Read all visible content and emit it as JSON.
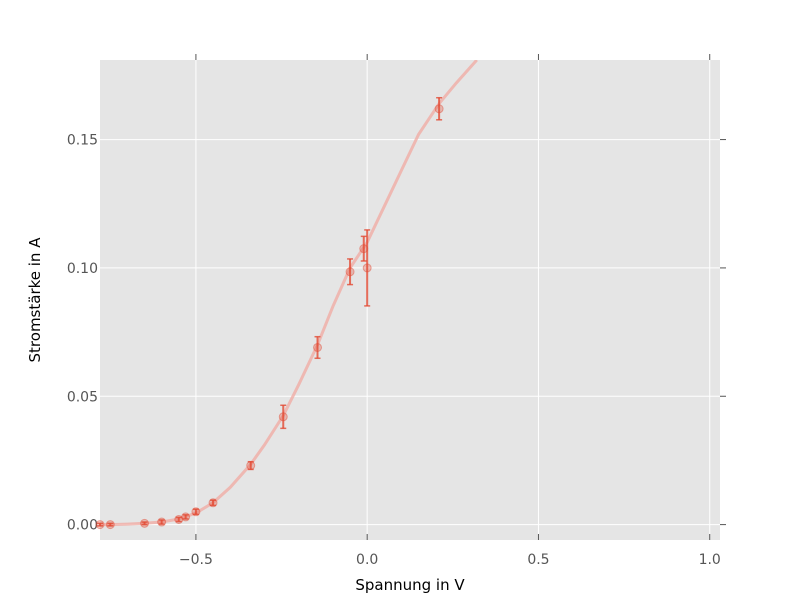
{
  "chart_data": {
    "type": "line",
    "title": "",
    "xlabel": "Spannung in V",
    "ylabel": "Stromstärke in A",
    "xlim": [
      -0.78,
      1.03
    ],
    "ylim": [
      -0.006,
      0.181
    ],
    "grid": true,
    "legend": "none",
    "x_ticks": [
      {
        "value": -0.5,
        "label": "−0.5"
      },
      {
        "value": 0.0,
        "label": "0.0"
      },
      {
        "value": 0.5,
        "label": "0.5"
      },
      {
        "value": 1.0,
        "label": "1.0"
      }
    ],
    "y_ticks": [
      {
        "value": 0.0,
        "label": "0.00"
      },
      {
        "value": 0.05,
        "label": "0.05"
      },
      {
        "value": 0.1,
        "label": "0.10"
      },
      {
        "value": 0.15,
        "label": "0.15"
      }
    ],
    "series": [
      {
        "kind": "measurements",
        "color": "#e24a33",
        "points": [
          {
            "x": -0.78,
            "y": 0.0,
            "err": 0.0005
          },
          {
            "x": -0.75,
            "y": 0.0,
            "err": 0.0005
          },
          {
            "x": -0.65,
            "y": 0.0005,
            "err": 0.0005
          },
          {
            "x": -0.6,
            "y": 0.001,
            "err": 0.0008
          },
          {
            "x": -0.55,
            "y": 0.002,
            "err": 0.0008
          },
          {
            "x": -0.53,
            "y": 0.003,
            "err": 0.0008
          },
          {
            "x": -0.5,
            "y": 0.005,
            "err": 0.001
          },
          {
            "x": -0.45,
            "y": 0.0085,
            "err": 0.001
          },
          {
            "x": -0.34,
            "y": 0.023,
            "err": 0.0015
          },
          {
            "x": -0.245,
            "y": 0.042,
            "err": 0.0045
          },
          {
            "x": -0.145,
            "y": 0.069,
            "err": 0.0042
          },
          {
            "x": -0.05,
            "y": 0.0985,
            "err": 0.005
          },
          {
            "x": -0.01,
            "y": 0.1075,
            "err": 0.0048
          },
          {
            "x": 0.0,
            "y": 0.1,
            "err": 0.0148
          },
          {
            "x": 0.21,
            "y": 0.162,
            "err": 0.0043
          }
        ]
      },
      {
        "kind": "fit",
        "color": "#f0a8a0",
        "x": [
          -0.78,
          -0.75,
          -0.7,
          -0.65,
          -0.6,
          -0.55,
          -0.5,
          -0.45,
          -0.4,
          -0.34,
          -0.3,
          -0.245,
          -0.2,
          -0.145,
          -0.1,
          -0.05,
          0.0,
          0.05,
          0.1,
          0.15,
          0.21,
          0.26,
          0.32
        ],
        "y": [
          0.0,
          0.0,
          0.0002,
          0.0005,
          0.001,
          0.0022,
          0.0045,
          0.0085,
          0.0145,
          0.0235,
          0.031,
          0.0425,
          0.0545,
          0.07,
          0.085,
          0.1,
          0.11,
          0.124,
          0.138,
          0.152,
          0.164,
          0.172,
          0.181
        ]
      }
    ]
  }
}
